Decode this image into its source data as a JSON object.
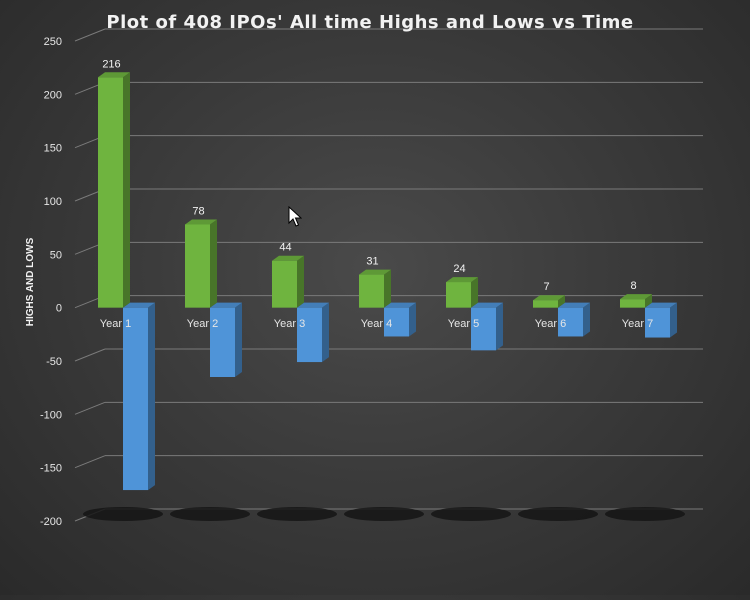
{
  "chart_data": {
    "type": "bar",
    "title": "Plot of 408 IPOs' All time Highs and Lows  vs Time",
    "xlabel": "",
    "ylabel": "HIGHS AND LOWS",
    "ylim": [
      -200,
      250
    ],
    "yticks": [
      250,
      200,
      150,
      100,
      50,
      0,
      -50,
      -100,
      -150,
      -200
    ],
    "grid": true,
    "style": "3d-clustered-column",
    "categories": [
      "Year 1",
      "Year 2",
      "Year 3",
      "Year 4",
      "Year 5",
      "Year 6",
      "Year 7"
    ],
    "series": [
      {
        "values": [
          216,
          78,
          44,
          31,
          24,
          7,
          8
        ],
        "color": "#6fb43f",
        "data_labels": true
      },
      {
        "values": [
          -171,
          -65,
          -51,
          -27,
          -40,
          -27,
          -28
        ],
        "color": "#4f94d8",
        "data_labels": false
      }
    ]
  },
  "cursor": {
    "icon": "mouse-pointer-icon"
  }
}
